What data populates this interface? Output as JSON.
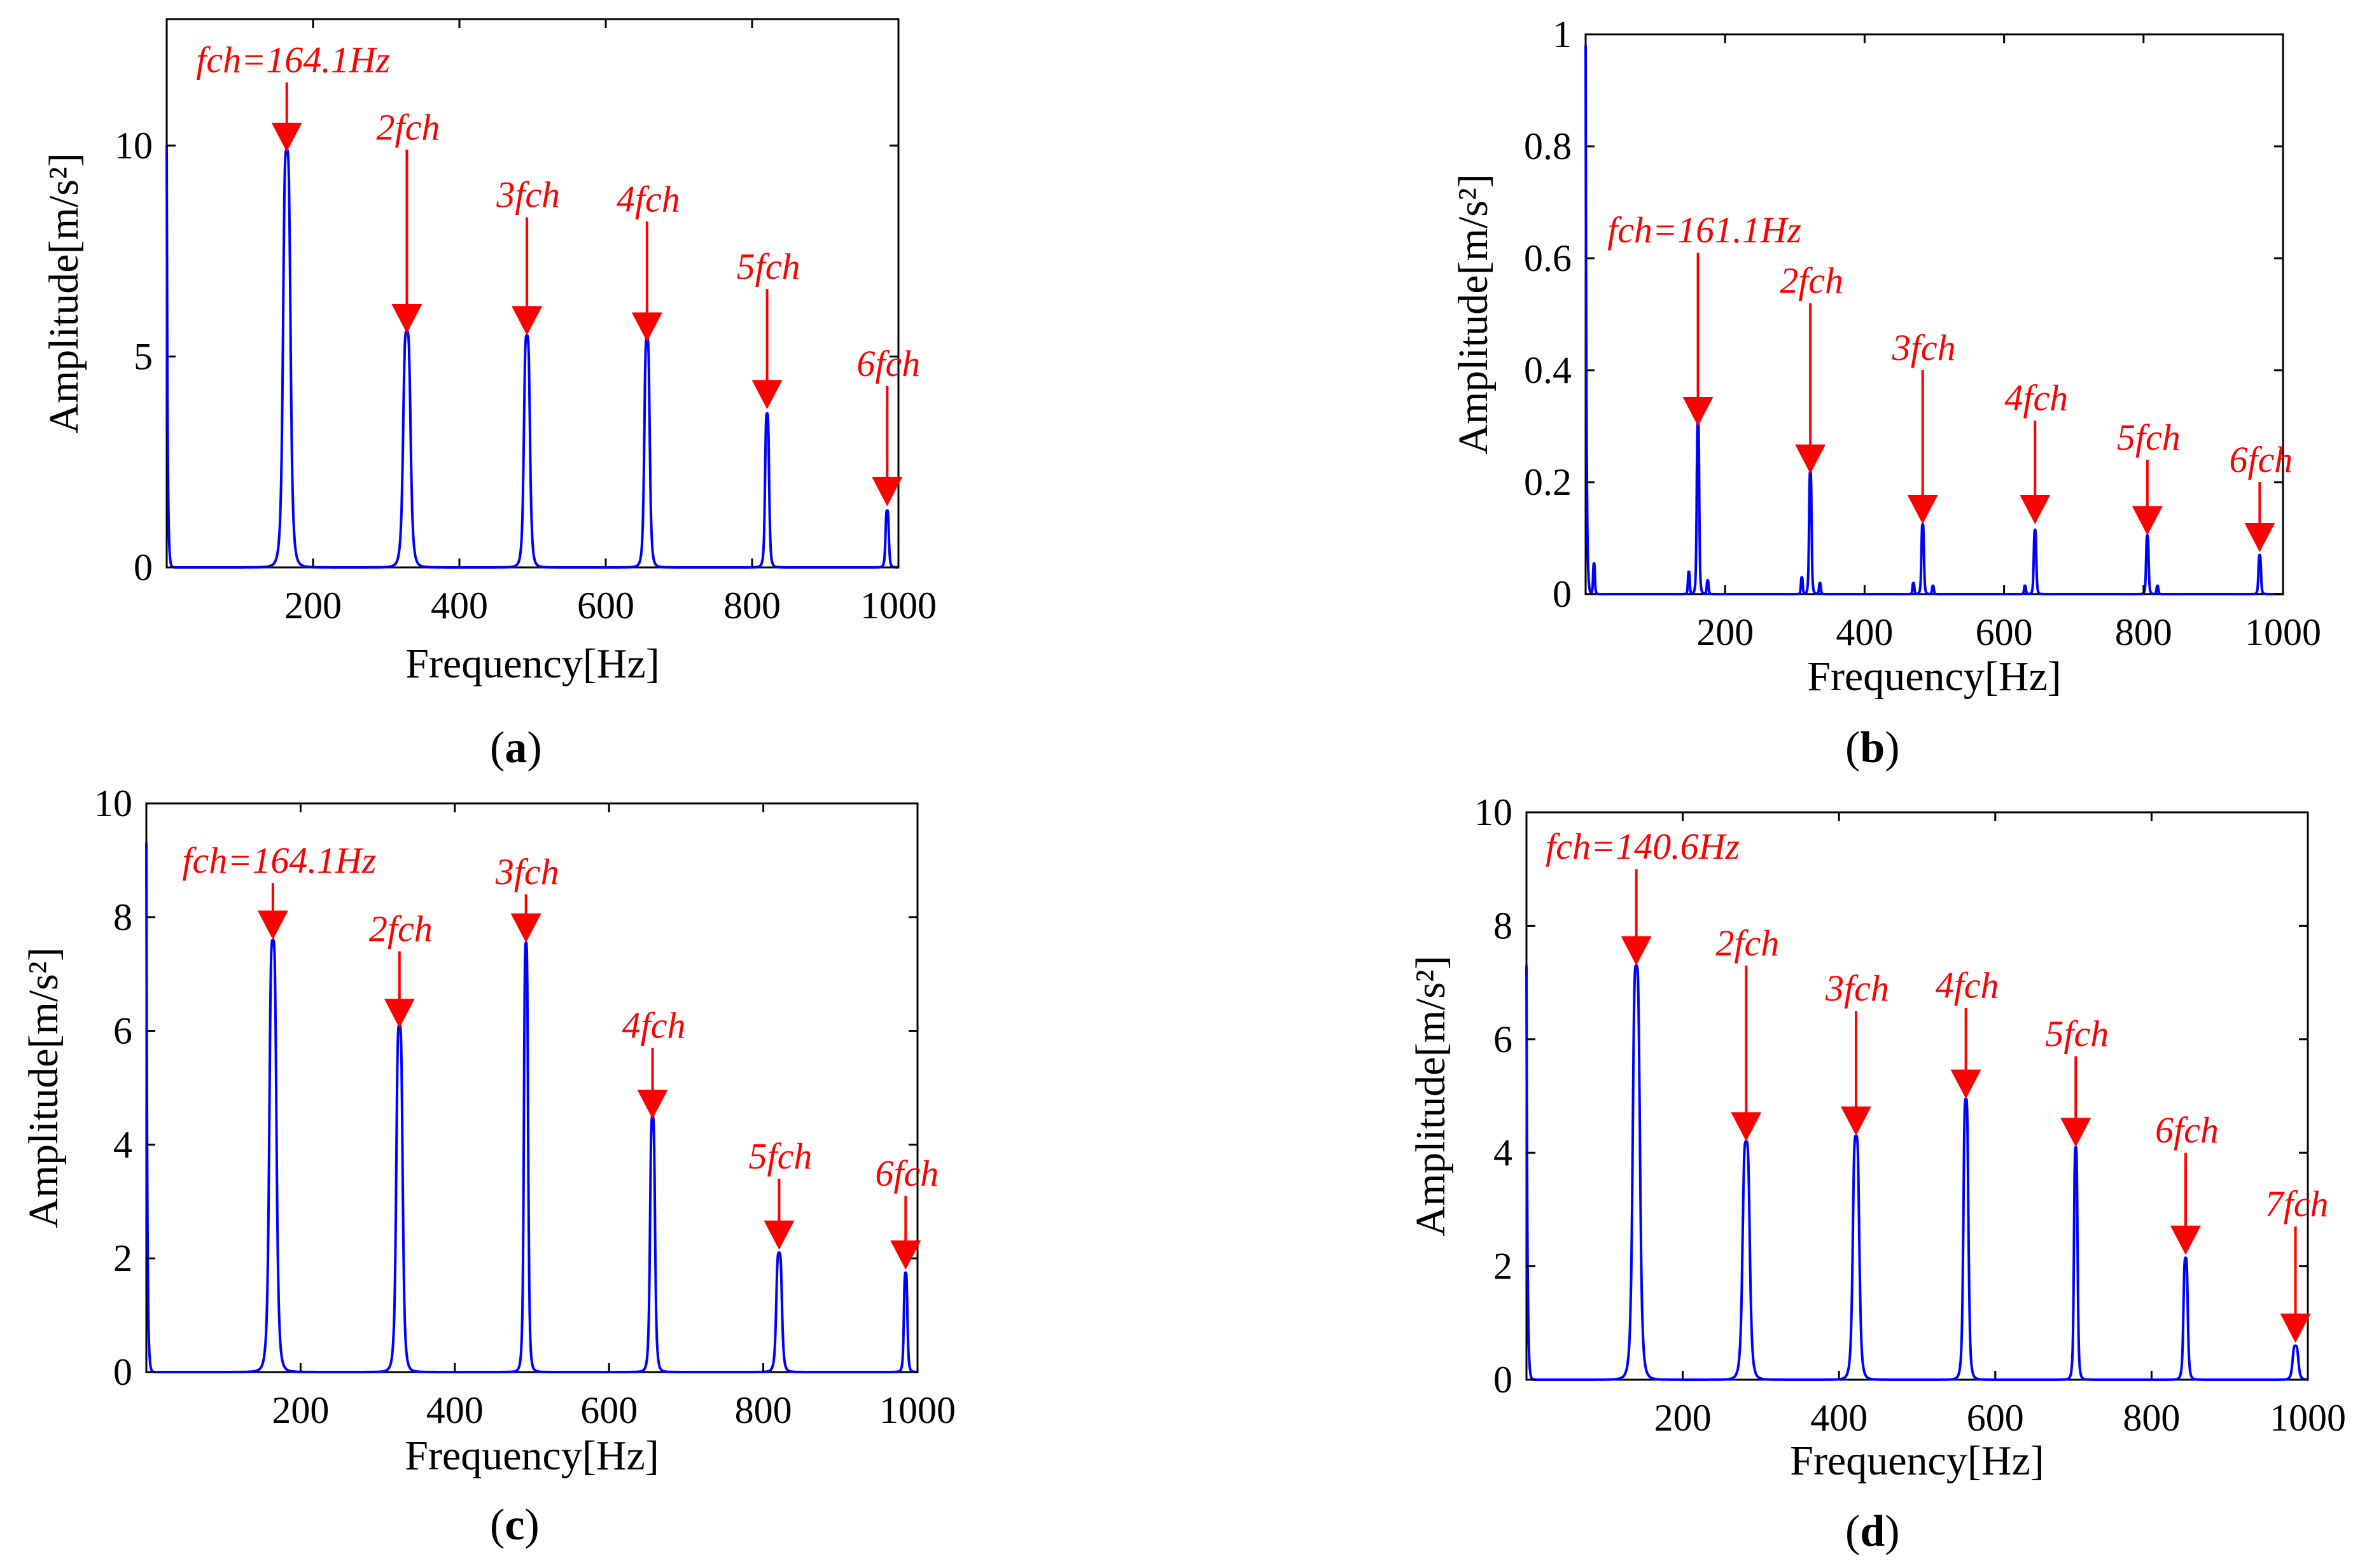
{
  "colors": {
    "spectrum": "#0000ff",
    "annotation": "#ff0000",
    "axes": "#000000"
  },
  "chart_data": [
    {
      "id": "a",
      "caption": "a",
      "type": "line",
      "xlabel": "Frequency[Hz]",
      "ylabel": "Amplitude[m/s²]",
      "xlim": [
        0,
        1000
      ],
      "ylim": [
        0,
        13
      ],
      "xticks": [
        200,
        400,
        600,
        800,
        1000
      ],
      "yticks": [
        0,
        5,
        10
      ],
      "y_start": 10.0,
      "peaks": [
        {
          "f": 164.1,
          "amp": 9.9,
          "width": 5.5
        },
        {
          "f": 328.2,
          "amp": 5.6,
          "width": 5.5
        },
        {
          "f": 492.3,
          "amp": 5.5,
          "width": 4.5
        },
        {
          "f": 656.4,
          "amp": 5.45,
          "width": 4.0
        },
        {
          "f": 820.5,
          "amp": 3.65,
          "width": 3.0
        },
        {
          "f": 984.6,
          "amp": 1.35,
          "width": 2.5
        }
      ],
      "annotations": [
        {
          "label": "fch=164.1Hz",
          "f": 164.1,
          "tip": 9.85,
          "top": 11.5
        },
        {
          "label": "2fch",
          "f": 328.2,
          "tip": 5.55,
          "top": 9.9
        },
        {
          "label": "3fch",
          "f": 492.3,
          "tip": 5.5,
          "top": 8.3
        },
        {
          "label": "4fch",
          "f": 656.4,
          "tip": 5.35,
          "top": 8.2
        },
        {
          "label": "5fch",
          "f": 820.5,
          "tip": 3.75,
          "top": 6.6
        },
        {
          "label": "6fch",
          "f": 984.6,
          "tip": 1.45,
          "top": 4.3
        }
      ]
    },
    {
      "id": "b",
      "caption": "b",
      "type": "line",
      "xlabel": "Frequency[Hz]",
      "ylabel": "Amplitude[m/s²]",
      "xlim": [
        0,
        1000
      ],
      "ylim": [
        0,
        1
      ],
      "xticks": [
        200,
        400,
        600,
        800,
        1000
      ],
      "yticks": [
        0,
        0.2,
        0.4,
        0.6,
        0.8,
        1
      ],
      "y_start": 0.98,
      "peaks": [
        {
          "f": 161.1,
          "amp": 0.31,
          "width": 2.0
        },
        {
          "f": 322.2,
          "amp": 0.22,
          "width": 2.0
        },
        {
          "f": 483.3,
          "amp": 0.125,
          "width": 2.0
        },
        {
          "f": 644.4,
          "amp": 0.115,
          "width": 2.0
        },
        {
          "f": 805.5,
          "amp": 0.105,
          "width": 2.0
        },
        {
          "f": 966.6,
          "amp": 0.07,
          "width": 2.0
        },
        {
          "f": 12,
          "amp": 0.055,
          "width": 1.5
        },
        {
          "f": 148,
          "amp": 0.04,
          "width": 1.5
        },
        {
          "f": 175,
          "amp": 0.025,
          "width": 1.5
        },
        {
          "f": 310,
          "amp": 0.03,
          "width": 1.5
        },
        {
          "f": 336,
          "amp": 0.02,
          "width": 1.5
        },
        {
          "f": 470,
          "amp": 0.02,
          "width": 1.5
        },
        {
          "f": 498,
          "amp": 0.015,
          "width": 1.5
        },
        {
          "f": 630,
          "amp": 0.015,
          "width": 1.5
        },
        {
          "f": 820,
          "amp": 0.015,
          "width": 1.5
        }
      ],
      "annotations": [
        {
          "label": "fch=161.1Hz",
          "f": 161.1,
          "tip": 0.3,
          "top": 0.61
        },
        {
          "label": "2fch",
          "f": 322.2,
          "tip": 0.215,
          "top": 0.52
        },
        {
          "label": "3fch",
          "f": 483.3,
          "tip": 0.125,
          "top": 0.4
        },
        {
          "label": "4fch",
          "f": 644.4,
          "tip": 0.125,
          "top": 0.31
        },
        {
          "label": "5fch",
          "f": 805.5,
          "tip": 0.105,
          "top": 0.24
        },
        {
          "label": "6fch",
          "f": 966.6,
          "tip": 0.075,
          "top": 0.2
        }
      ]
    },
    {
      "id": "c",
      "caption": "c",
      "type": "line",
      "xlabel": "Frequency[Hz]",
      "ylabel": "Amplitude[m/s²]",
      "xlim": [
        0,
        1000
      ],
      "ylim": [
        0,
        10
      ],
      "xticks": [
        200,
        400,
        600,
        800,
        1000
      ],
      "yticks": [
        0,
        2,
        4,
        6,
        8,
        10
      ],
      "y_start": 9.3,
      "peaks": [
        {
          "f": 164.1,
          "amp": 7.6,
          "width": 5.0
        },
        {
          "f": 328.2,
          "amp": 6.1,
          "width": 4.5
        },
        {
          "f": 492.3,
          "amp": 7.55,
          "width": 3.0
        },
        {
          "f": 656.4,
          "amp": 4.5,
          "width": 3.5
        },
        {
          "f": 820.5,
          "amp": 2.1,
          "width": 4.0
        },
        {
          "f": 984.6,
          "amp": 1.75,
          "width": 2.5
        }
      ],
      "annotations": [
        {
          "label": "fch=164.1Hz",
          "f": 164.1,
          "tip": 7.6,
          "top": 8.6
        },
        {
          "label": "2fch",
          "f": 328.2,
          "tip": 6.05,
          "top": 7.4
        },
        {
          "label": "3fch",
          "f": 492.3,
          "tip": 7.55,
          "top": 8.4
        },
        {
          "label": "4fch",
          "f": 656.4,
          "tip": 4.45,
          "top": 5.7
        },
        {
          "label": "5fch",
          "f": 820.5,
          "tip": 2.15,
          "top": 3.4
        },
        {
          "label": "6fch",
          "f": 984.6,
          "tip": 1.8,
          "top": 3.1
        }
      ]
    },
    {
      "id": "d",
      "caption": "d",
      "type": "line",
      "xlabel": "Frequency[Hz]",
      "ylabel": "Amplitude[m/s²]",
      "xlim": [
        0,
        1000
      ],
      "ylim": [
        0,
        10
      ],
      "xticks": [
        200,
        400,
        600,
        800,
        1000
      ],
      "yticks": [
        0,
        2,
        4,
        6,
        8,
        10
      ],
      "y_start": 7.3,
      "peaks": [
        {
          "f": 140.6,
          "amp": 7.3,
          "width": 5.0
        },
        {
          "f": 281.2,
          "amp": 4.2,
          "width": 5.0
        },
        {
          "f": 421.8,
          "amp": 4.3,
          "width": 4.5
        },
        {
          "f": 562.4,
          "amp": 4.95,
          "width": 3.5
        },
        {
          "f": 703.0,
          "amp": 4.1,
          "width": 2.5
        },
        {
          "f": 843.6,
          "amp": 2.15,
          "width": 3.0
        },
        {
          "f": 984.2,
          "amp": 0.6,
          "width": 4.0
        }
      ],
      "annotations": [
        {
          "label": "fch=140.6Hz",
          "f": 140.6,
          "tip": 7.3,
          "top": 9.0
        },
        {
          "label": "2fch",
          "f": 281.2,
          "tip": 4.2,
          "top": 7.3
        },
        {
          "label": "3fch",
          "f": 421.8,
          "tip": 4.3,
          "top": 6.5
        },
        {
          "label": "4fch",
          "f": 562.4,
          "tip": 4.95,
          "top": 6.55
        },
        {
          "label": "5fch",
          "f": 703.0,
          "tip": 4.1,
          "top": 5.7
        },
        {
          "label": "6fch",
          "f": 843.6,
          "tip": 2.2,
          "top": 4.0
        },
        {
          "label": "7fch",
          "f": 984.2,
          "tip": 0.65,
          "top": 2.7
        }
      ]
    }
  ]
}
